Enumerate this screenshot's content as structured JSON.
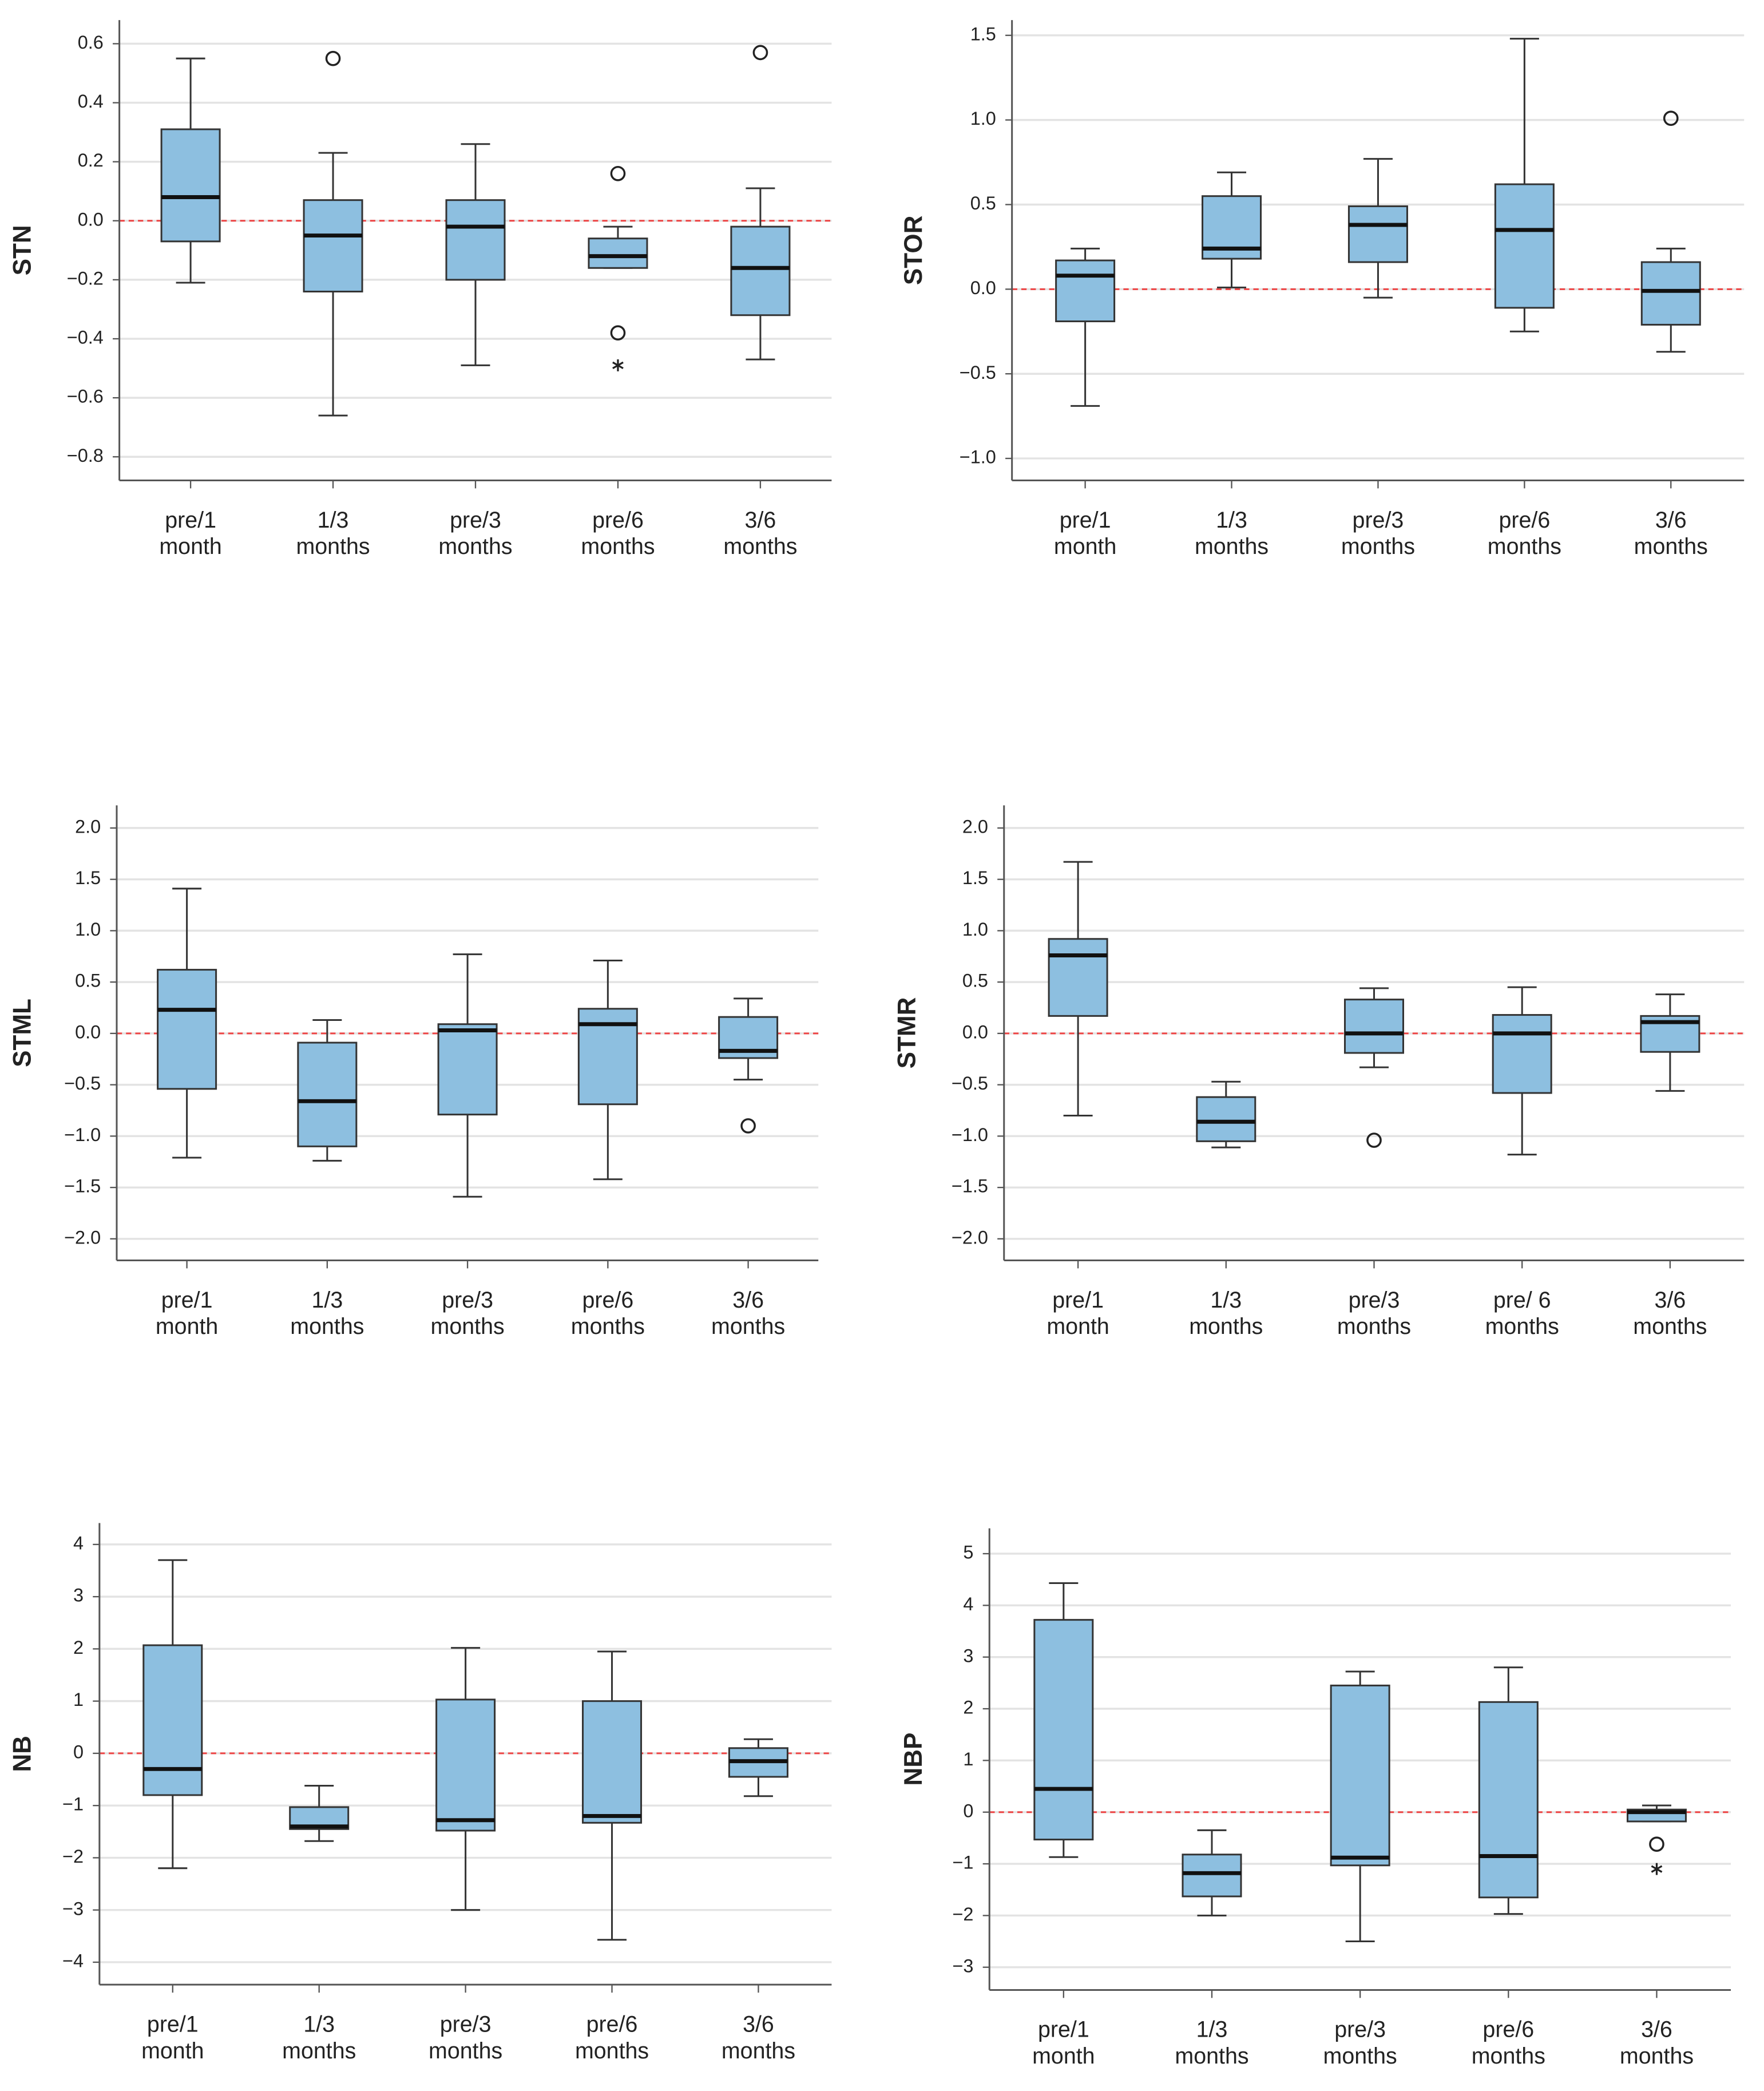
{
  "chart_data": [
    {
      "type": "box",
      "ylabel": "STN",
      "color": "#8dbfe0",
      "reference_line": 0,
      "grid": true,
      "categories": [
        [
          "pre/1",
          "month"
        ],
        [
          "1/3",
          "months"
        ],
        [
          "pre/3",
          "months"
        ],
        [
          "pre/6",
          "months"
        ],
        [
          "3/6",
          "months"
        ]
      ],
      "ylim": [
        -0.88,
        0.68
      ],
      "yticks": [
        {
          "value": -0.8,
          "label": "−0.8"
        },
        {
          "value": -0.6,
          "label": "−0.6"
        },
        {
          "value": -0.4,
          "label": "−0.4"
        },
        {
          "value": -0.2,
          "label": "−0.2"
        },
        {
          "value": 0,
          "label": "0.0"
        },
        0.2,
        0.4,
        0.6
      ],
      "boxes": [
        {
          "min": -0.21,
          "q1": -0.07,
          "median": 0.08,
          "q3": 0.31,
          "max": 0.55,
          "outliers": [],
          "extremes": []
        },
        {
          "min": -0.66,
          "q1": -0.24,
          "median": -0.05,
          "q3": 0.07,
          "max": 0.23,
          "outliers": [
            0.55
          ],
          "extremes": []
        },
        {
          "min": -0.49,
          "q1": -0.2,
          "median": -0.02,
          "q3": 0.07,
          "max": 0.26,
          "outliers": [],
          "extremes": []
        },
        {
          "min": -0.16,
          "q1": -0.16,
          "median": -0.12,
          "q3": -0.06,
          "max": -0.02,
          "outliers": [
            0.16,
            -0.38
          ],
          "extremes": [
            -0.49
          ]
        },
        {
          "min": -0.47,
          "q1": -0.32,
          "median": -0.16,
          "q3": -0.02,
          "max": 0.11,
          "outliers": [
            0.57
          ],
          "extremes": []
        }
      ]
    },
    {
      "type": "box",
      "ylabel": "STOR",
      "color": "#8dbfe0",
      "reference_line": 0,
      "grid": true,
      "categories": [
        [
          "pre/1",
          "month"
        ],
        [
          "1/3",
          "months"
        ],
        [
          "pre/3",
          "months"
        ],
        [
          "pre/6",
          "months"
        ],
        [
          "3/6",
          "months"
        ]
      ],
      "ylim": [
        -1.13,
        1.59
      ],
      "yticks": [
        {
          "value": -1.0,
          "label": "−1.0"
        },
        {
          "value": -0.5,
          "label": "−0.5"
        },
        {
          "value": 0,
          "label": "0.0"
        },
        0.5,
        {
          "value": 1.0,
          "label": "1.0"
        },
        1.5
      ],
      "boxes": [
        {
          "min": -0.69,
          "q1": -0.19,
          "median": 0.08,
          "q3": 0.17,
          "max": 0.24,
          "outliers": [],
          "extremes": []
        },
        {
          "min": 0.01,
          "q1": 0.18,
          "median": 0.24,
          "q3": 0.55,
          "max": 0.69,
          "outliers": [],
          "extremes": []
        },
        {
          "min": -0.05,
          "q1": 0.16,
          "median": 0.38,
          "q3": 0.49,
          "max": 0.77,
          "outliers": [],
          "extremes": []
        },
        {
          "min": -0.25,
          "q1": -0.11,
          "median": 0.35,
          "q3": 0.62,
          "max": 1.48,
          "outliers": [],
          "extremes": []
        },
        {
          "min": -0.37,
          "q1": -0.21,
          "median": -0.01,
          "q3": 0.16,
          "max": 0.24,
          "outliers": [
            1.01
          ],
          "extremes": []
        }
      ]
    },
    {
      "type": "box",
      "ylabel": "STML",
      "color": "#8dbfe0",
      "reference_line": 0,
      "grid": true,
      "categories": [
        [
          "pre/1",
          "month"
        ],
        [
          "1/3",
          "months"
        ],
        [
          "pre/3",
          "months"
        ],
        [
          "pre/6",
          "months"
        ],
        [
          "3/6",
          "months"
        ]
      ],
      "ylim": [
        -2.21,
        2.22
      ],
      "yticks": [
        {
          "value": -2.0,
          "label": "−2.0"
        },
        {
          "value": -1.5,
          "label": "−1.5"
        },
        {
          "value": -1.0,
          "label": "−1.0"
        },
        {
          "value": -0.5,
          "label": "−0.5"
        },
        {
          "value": 0,
          "label": "0.0"
        },
        0.5,
        {
          "value": 1.0,
          "label": "1.0"
        },
        1.5,
        {
          "value": 2.0,
          "label": "2.0"
        }
      ],
      "boxes": [
        {
          "min": -1.21,
          "q1": -0.54,
          "median": 0.23,
          "q3": 0.62,
          "max": 1.41,
          "outliers": [],
          "extremes": []
        },
        {
          "min": -1.24,
          "q1": -1.1,
          "median": -0.66,
          "q3": -0.09,
          "max": 0.13,
          "outliers": [],
          "extremes": []
        },
        {
          "min": -1.59,
          "q1": -0.79,
          "median": 0.03,
          "q3": 0.09,
          "max": 0.77,
          "outliers": [],
          "extremes": []
        },
        {
          "min": -1.42,
          "q1": -0.69,
          "median": 0.09,
          "q3": 0.24,
          "max": 0.71,
          "outliers": [],
          "extremes": []
        },
        {
          "min": -0.45,
          "q1": -0.24,
          "median": -0.17,
          "q3": 0.16,
          "max": 0.34,
          "outliers": [
            -0.9
          ],
          "extremes": []
        }
      ]
    },
    {
      "type": "box",
      "ylabel": "STMR",
      "color": "#8dbfe0",
      "reference_line": 0,
      "grid": true,
      "categories": [
        [
          "pre/1",
          "month"
        ],
        [
          "1/3",
          "months"
        ],
        [
          "pre/3",
          "months"
        ],
        [
          "pre/ 6",
          "months"
        ],
        [
          "3/6",
          "months"
        ]
      ],
      "ylim": [
        -2.21,
        2.22
      ],
      "yticks": [
        {
          "value": -2.0,
          "label": "−2.0"
        },
        {
          "value": -1.5,
          "label": "−1.5"
        },
        {
          "value": -1.0,
          "label": "−1.0"
        },
        {
          "value": -0.5,
          "label": "−0.5"
        },
        {
          "value": 0,
          "label": "0.0"
        },
        0.5,
        {
          "value": 1.0,
          "label": "1.0"
        },
        1.5,
        {
          "value": 2.0,
          "label": "2.0"
        }
      ],
      "boxes": [
        {
          "min": -0.8,
          "q1": 0.17,
          "median": 0.76,
          "q3": 0.92,
          "max": 1.67,
          "outliers": [],
          "extremes": []
        },
        {
          "min": -1.11,
          "q1": -1.05,
          "median": -0.86,
          "q3": -0.62,
          "max": -0.47,
          "outliers": [],
          "extremes": []
        },
        {
          "min": -0.33,
          "q1": -0.19,
          "median": 0,
          "q3": 0.33,
          "max": 0.44,
          "outliers": [
            -1.04
          ],
          "extremes": []
        },
        {
          "min": -1.18,
          "q1": -0.58,
          "median": 0,
          "q3": 0.18,
          "max": 0.45,
          "outliers": [],
          "extremes": []
        },
        {
          "min": -0.56,
          "q1": -0.18,
          "median": 0.11,
          "q3": 0.17,
          "max": 0.38,
          "outliers": [],
          "extremes": []
        }
      ]
    },
    {
      "type": "box",
      "ylabel": "NB",
      "color": "#8dbfe0",
      "reference_line": 0,
      "grid": true,
      "categories": [
        [
          "pre/1",
          "month"
        ],
        [
          "1/3",
          "months"
        ],
        [
          "pre/3",
          "months"
        ],
        [
          "pre/6",
          "months"
        ],
        [
          "3/6",
          "months"
        ]
      ],
      "ylim": [
        -4.43,
        4.41
      ],
      "yticks": [
        {
          "value": -4,
          "label": "−4"
        },
        {
          "value": -3,
          "label": "−3"
        },
        {
          "value": -2,
          "label": "−2"
        },
        {
          "value": -1,
          "label": "−1"
        },
        0,
        1,
        2,
        3,
        4
      ],
      "boxes": [
        {
          "min": -2.2,
          "q1": -0.8,
          "median": -0.3,
          "q3": 2.07,
          "max": 3.7,
          "outliers": [],
          "extremes": []
        },
        {
          "min": -1.68,
          "q1": -1.45,
          "median": -1.4,
          "q3": -1.03,
          "max": -0.62,
          "outliers": [],
          "extremes": []
        },
        {
          "min": -3.0,
          "q1": -1.48,
          "median": -1.28,
          "q3": 1.03,
          "max": 2.02,
          "outliers": [],
          "extremes": []
        },
        {
          "min": -3.57,
          "q1": -1.33,
          "median": -1.2,
          "q3": 1.0,
          "max": 1.95,
          "outliers": [],
          "extremes": []
        },
        {
          "min": -0.82,
          "q1": -0.45,
          "median": -0.15,
          "q3": 0.1,
          "max": 0.27,
          "outliers": [],
          "extremes": []
        }
      ]
    },
    {
      "type": "box",
      "ylabel": "NBP",
      "color": "#8dbfe0",
      "reference_line": 0,
      "grid": true,
      "categories": [
        [
          "pre/1",
          "month"
        ],
        [
          "1/3",
          "months"
        ],
        [
          "pre/3",
          "months"
        ],
        [
          "pre/6",
          "months"
        ],
        [
          "3/6",
          "months"
        ]
      ],
      "ylim": [
        -3.44,
        5.49
      ],
      "yticks": [
        {
          "value": -3,
          "label": "−3"
        },
        {
          "value": -2,
          "label": "−2"
        },
        {
          "value": -1,
          "label": "−1"
        },
        0,
        1,
        2,
        3,
        4,
        5
      ],
      "boxes": [
        {
          "min": -0.87,
          "q1": -0.53,
          "median": 0.45,
          "q3": 3.72,
          "max": 4.43,
          "outliers": [],
          "extremes": []
        },
        {
          "min": -2.0,
          "q1": -1.63,
          "median": -1.18,
          "q3": -0.82,
          "max": -0.35,
          "outliers": [],
          "extremes": []
        },
        {
          "min": -2.5,
          "q1": -1.03,
          "median": -0.88,
          "q3": 2.45,
          "max": 2.72,
          "outliers": [],
          "extremes": []
        },
        {
          "min": -1.97,
          "q1": -1.65,
          "median": -0.85,
          "q3": 2.13,
          "max": 2.8,
          "outliers": [],
          "extremes": []
        },
        {
          "min": -0.18,
          "q1": -0.18,
          "median": 0,
          "q3": 0.05,
          "max": 0.13,
          "outliers": [
            -0.62
          ],
          "extremes": [
            -1.1
          ]
        }
      ]
    }
  ]
}
